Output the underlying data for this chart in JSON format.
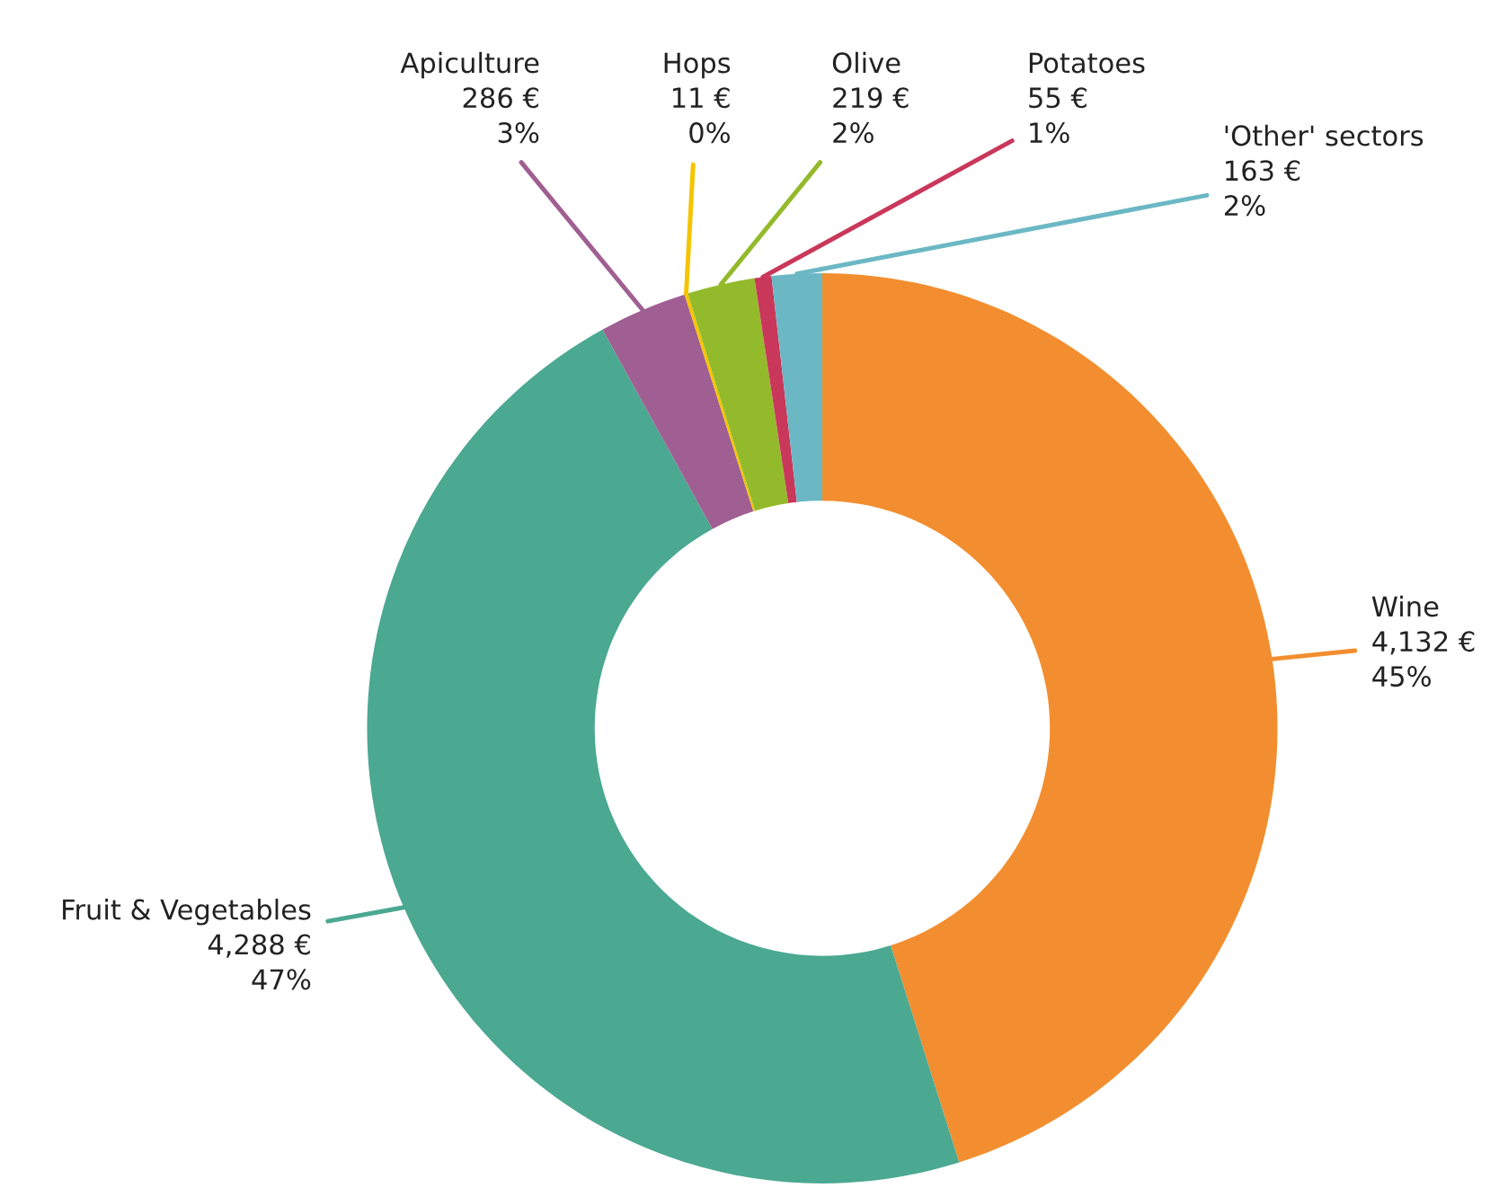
{
  "chart_data": {
    "type": "donut",
    "categories": [
      "Wine",
      "Fruit & Vegetables",
      "Apiculture",
      "Hops",
      "Olive",
      "Potatoes",
      "'Other' sectors"
    ],
    "values": [
      4132,
      4288,
      286,
      11,
      219,
      55,
      163
    ],
    "colors": [
      "#f28e2f",
      "#4ba891",
      "#a05f92",
      "#f5c400",
      "#93ba2b",
      "#c9375a",
      "#6bb8c4"
    ],
    "value_labels": [
      "4,132 €\n45%",
      "4,288 €\n47%",
      "286 €\n3%",
      "11 €\n0%",
      "219 €\n2%",
      "55 €\n1%",
      "163 €\n2%"
    ]
  }
}
